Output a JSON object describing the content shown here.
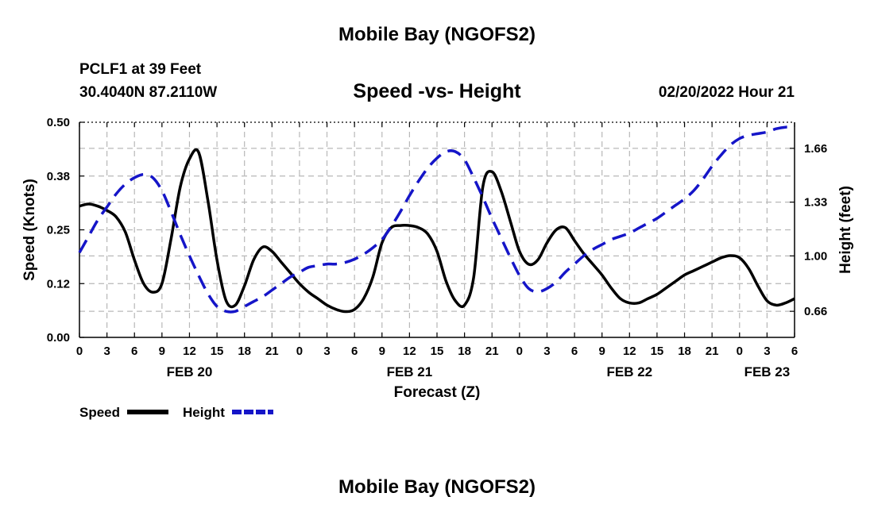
{
  "header": {
    "title": "Mobile Bay (NGOFS2)",
    "station": "PCLF1 at 39 Feet",
    "coords": "30.4040N  87.2110W",
    "subtitle": "Speed -vs- Height",
    "datetime": "02/20/2022 Hour 21"
  },
  "footer": {
    "title": "Mobile Bay (NGOFS2)"
  },
  "legend": {
    "speed_label": "Speed",
    "height_label": "Height"
  },
  "chart_data": {
    "type": "line",
    "title": "Speed -vs- Height",
    "xlabel": "Forecast (Z)",
    "ylabel_left": "Speed (Knots)",
    "ylabel_right": "Height (feet)",
    "x_unit": "hours since 2022-02-20 00Z",
    "xlim": [
      0,
      78
    ],
    "ylim_left": [
      0,
      0.5
    ],
    "ylim_right": [
      0.5,
      1.82
    ],
    "grid": true,
    "legend_position": "bottom-left",
    "x_ticks": [
      0,
      3,
      6,
      9,
      12,
      15,
      18,
      21,
      24,
      27,
      30,
      33,
      36,
      39,
      42,
      45,
      48,
      51,
      54,
      57,
      60,
      63,
      66,
      69,
      72,
      75,
      78
    ],
    "x_tick_labels": [
      "0",
      "3",
      "6",
      "9",
      "12",
      "15",
      "18",
      "21",
      "0",
      "3",
      "6",
      "9",
      "12",
      "15",
      "18",
      "21",
      "0",
      "3",
      "6",
      "9",
      "12",
      "15",
      "18",
      "21",
      "0",
      "3",
      "6"
    ],
    "day_labels": [
      {
        "label": "FEB 20",
        "x": 12
      },
      {
        "label": "FEB 21",
        "x": 36
      },
      {
        "label": "FEB 22",
        "x": 60
      },
      {
        "label": "FEB 23",
        "x": 75
      }
    ],
    "y_left_ticks": [
      0,
      0.125,
      0.25,
      0.375,
      0.5
    ],
    "y_left_tick_labels": [
      "0.00",
      "0.12",
      "0.25",
      "0.38",
      "0.50"
    ],
    "y_right_ticks": [
      0.66,
      1.0,
      1.33,
      1.66
    ],
    "y_right_tick_labels": [
      "0.66",
      "1.00",
      "1.33",
      "1.66"
    ],
    "series": [
      {
        "name": "Speed",
        "axis": "left",
        "color": "#000000",
        "dash": "solid",
        "x": [
          0,
          1,
          2,
          3,
          4,
          5,
          6,
          7,
          8,
          9,
          10,
          11,
          12,
          13,
          14,
          15,
          16,
          17,
          18,
          19,
          20,
          21,
          22,
          23,
          24,
          25,
          26,
          27,
          28,
          29,
          30,
          31,
          32,
          33,
          34,
          35,
          36,
          37,
          38,
          39,
          40,
          41,
          42,
          43,
          44,
          45,
          46,
          47,
          48,
          49,
          50,
          51,
          52,
          53,
          54,
          55,
          56,
          57,
          58,
          59,
          60,
          61,
          62,
          63,
          64,
          65,
          66,
          67,
          68,
          69,
          70,
          71,
          72,
          73,
          74,
          75,
          76,
          77,
          78
        ],
        "values": [
          0.305,
          0.31,
          0.305,
          0.295,
          0.28,
          0.245,
          0.18,
          0.125,
          0.105,
          0.125,
          0.23,
          0.35,
          0.415,
          0.43,
          0.32,
          0.18,
          0.085,
          0.075,
          0.12,
          0.18,
          0.21,
          0.2,
          0.175,
          0.15,
          0.125,
          0.105,
          0.09,
          0.075,
          0.065,
          0.06,
          0.065,
          0.09,
          0.14,
          0.22,
          0.255,
          0.26,
          0.26,
          0.255,
          0.24,
          0.2,
          0.13,
          0.085,
          0.075,
          0.14,
          0.35,
          0.385,
          0.34,
          0.27,
          0.2,
          0.17,
          0.18,
          0.22,
          0.25,
          0.255,
          0.225,
          0.195,
          0.17,
          0.145,
          0.115,
          0.09,
          0.08,
          0.08,
          0.09,
          0.1,
          0.115,
          0.13,
          0.145,
          0.155,
          0.165,
          0.175,
          0.185,
          0.19,
          0.185,
          0.16,
          0.12,
          0.085,
          0.075,
          0.08,
          0.09
        ]
      },
      {
        "name": "Height",
        "axis": "right",
        "color": "#1515c8",
        "dash": "dashed",
        "x": [
          0,
          1,
          2,
          3,
          4,
          5,
          6,
          7,
          8,
          9,
          10,
          11,
          12,
          13,
          14,
          15,
          16,
          17,
          18,
          19,
          20,
          21,
          22,
          23,
          24,
          25,
          26,
          27,
          28,
          29,
          30,
          31,
          32,
          33,
          34,
          35,
          36,
          37,
          38,
          39,
          40,
          41,
          42,
          43,
          44,
          45,
          46,
          47,
          48,
          49,
          50,
          51,
          52,
          53,
          54,
          55,
          56,
          57,
          58,
          59,
          60,
          61,
          62,
          63,
          64,
          65,
          66,
          67,
          68,
          69,
          70,
          71,
          72,
          73,
          74,
          75,
          76,
          77,
          78
        ],
        "values": [
          1.02,
          1.12,
          1.22,
          1.3,
          1.38,
          1.44,
          1.48,
          1.5,
          1.48,
          1.4,
          1.27,
          1.13,
          1.0,
          0.88,
          0.77,
          0.69,
          0.66,
          0.66,
          0.69,
          0.72,
          0.75,
          0.79,
          0.83,
          0.87,
          0.9,
          0.93,
          0.94,
          0.95,
          0.95,
          0.96,
          0.98,
          1.01,
          1.05,
          1.1,
          1.18,
          1.27,
          1.37,
          1.46,
          1.54,
          1.6,
          1.64,
          1.64,
          1.59,
          1.48,
          1.36,
          1.23,
          1.11,
          0.99,
          0.88,
          0.8,
          0.78,
          0.8,
          0.84,
          0.9,
          0.95,
          1.0,
          1.04,
          1.07,
          1.1,
          1.12,
          1.14,
          1.17,
          1.2,
          1.23,
          1.27,
          1.31,
          1.35,
          1.4,
          1.47,
          1.55,
          1.62,
          1.68,
          1.72,
          1.74,
          1.75,
          1.76,
          1.78,
          1.79,
          1.79
        ]
      }
    ]
  }
}
